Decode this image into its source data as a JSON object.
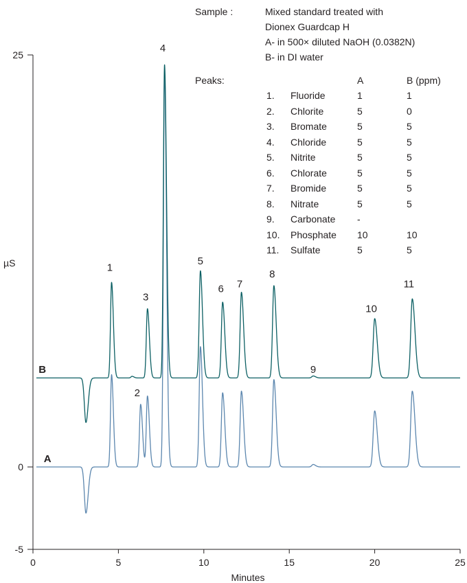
{
  "sample": {
    "label": "Sample :",
    "lines": [
      "Mixed standard treated with",
      "Dionex Guardcap H",
      "A- in 500× diluted NaOH (0.0382N)",
      "B- in DI water"
    ]
  },
  "peaks_table": {
    "label": "Peaks:",
    "col_a": "A",
    "col_b": "B (ppm)",
    "rows": [
      {
        "num": "1.",
        "name": "Fluoride",
        "a": "1",
        "b": "1"
      },
      {
        "num": "2.",
        "name": "Chlorite",
        "a": "5",
        "b": "0"
      },
      {
        "num": "3.",
        "name": "Bromate",
        "a": "5",
        "b": "5"
      },
      {
        "num": "4.",
        "name": "Chloride",
        "a": "5",
        "b": "5"
      },
      {
        "num": "5.",
        "name": "Nitrite",
        "a": "5",
        "b": "5"
      },
      {
        "num": "6.",
        "name": "Chlorate",
        "a": "5",
        "b": "5"
      },
      {
        "num": "7.",
        "name": "Bromide",
        "a": "5",
        "b": "5"
      },
      {
        "num": "8.",
        "name": "Nitrate",
        "a": "5",
        "b": "5"
      },
      {
        "num": "9.",
        "name": "Carbonate",
        "a": "-",
        "b": ""
      },
      {
        "num": "10.",
        "name": "Phosphate",
        "a": "10",
        "b": "10"
      },
      {
        "num": "11.",
        "name": "Sulfate",
        "a": "5",
        "b": "5"
      }
    ]
  },
  "chart_data": {
    "type": "line",
    "xlabel": "Minutes",
    "ylabel": "µS",
    "xlim": [
      0,
      25
    ],
    "ylim": [
      -5,
      25
    ],
    "x_ticks": [
      0,
      5,
      10,
      15,
      20,
      25
    ],
    "y_ticks": [
      -5,
      0,
      25
    ],
    "grid": false,
    "series": [
      {
        "name": "A",
        "color": "#5b86ae",
        "baseline": 0,
        "dip": {
          "x": 3.1,
          "depth": -2.8
        },
        "peaks": [
          {
            "x": 4.6,
            "height": 5.6
          },
          {
            "x": 6.3,
            "height": 3.8
          },
          {
            "x": 6.7,
            "height": 4.3
          },
          {
            "x": 7.7,
            "height": 24.0
          },
          {
            "x": 9.8,
            "height": 7.3
          },
          {
            "x": 11.1,
            "height": 4.5
          },
          {
            "x": 12.2,
            "height": 4.6
          },
          {
            "x": 14.1,
            "height": 5.3
          },
          {
            "x": 16.4,
            "height": 0.15
          },
          {
            "x": 20.0,
            "height": 3.4
          },
          {
            "x": 22.2,
            "height": 4.6
          }
        ]
      },
      {
        "name": "B",
        "color": "#0b5f63",
        "baseline": 5.4,
        "dip": {
          "x": 3.1,
          "depth": -2.7
        },
        "peaks": [
          {
            "x": 4.6,
            "height": 5.8
          },
          {
            "x": 5.8,
            "height": 0.1
          },
          {
            "x": 6.7,
            "height": 4.2
          },
          {
            "x": 7.7,
            "height": 19.0
          },
          {
            "x": 9.8,
            "height": 6.5
          },
          {
            "x": 11.1,
            "height": 4.6
          },
          {
            "x": 12.2,
            "height": 5.2
          },
          {
            "x": 14.1,
            "height": 5.6
          },
          {
            "x": 16.4,
            "height": 0.12
          },
          {
            "x": 20.0,
            "height": 3.6
          },
          {
            "x": 22.2,
            "height": 4.8
          }
        ]
      }
    ],
    "peak_labels": [
      {
        "text": "1",
        "x": 4.5,
        "y": 11.9
      },
      {
        "text": "2",
        "x": 6.1,
        "y": 4.3
      },
      {
        "text": "3",
        "x": 6.6,
        "y": 10.1
      },
      {
        "text": "4",
        "x": 7.6,
        "y": 25.2
      },
      {
        "text": "5",
        "x": 9.8,
        "y": 12.3
      },
      {
        "text": "6",
        "x": 11.0,
        "y": 10.6
      },
      {
        "text": "7",
        "x": 12.1,
        "y": 10.9
      },
      {
        "text": "8",
        "x": 14.0,
        "y": 11.5
      },
      {
        "text": "9",
        "x": 16.4,
        "y": 5.7
      },
      {
        "text": "10",
        "x": 19.8,
        "y": 9.4
      },
      {
        "text": "11",
        "x": 22.0,
        "y": 10.9
      }
    ],
    "trace_labels": [
      {
        "text": "B",
        "x": 0.55,
        "y": 5.7
      },
      {
        "text": "A",
        "x": 0.85,
        "y": 0.3
      }
    ]
  }
}
